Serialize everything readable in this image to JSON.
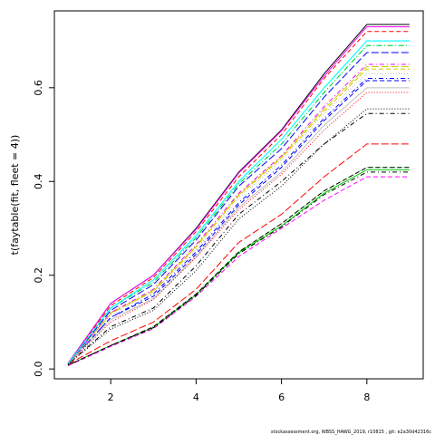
{
  "chart_data": {
    "type": "line",
    "ylabel": "t(faytable(fit, fleet = 4))",
    "footer": "stockassessment.org, WBSS_HAWG_2019, r10815 , git: e2a30d42316c",
    "x": [
      1,
      2,
      3,
      4,
      5,
      6,
      7,
      8,
      9
    ],
    "xlim": [
      0.68,
      9.32
    ],
    "ylim": [
      -0.021,
      0.764
    ],
    "xticks": [
      2,
      4,
      6,
      8
    ],
    "yticks": [
      {
        "value": 0,
        "label": "0.0"
      },
      {
        "value": 0.2,
        "label": "0.2"
      },
      {
        "value": 0.4,
        "label": "0.4"
      },
      {
        "value": 0.6,
        "label": "0.6"
      }
    ],
    "series": [
      {
        "color": "#000000",
        "values": [
          0.012,
          0.14,
          0.2,
          0.3,
          0.42,
          0.51,
          0.63,
          0.735,
          0.735
        ]
      },
      {
        "color": "#ff0000",
        "values": [
          0.012,
          0.135,
          0.195,
          0.293,
          0.41,
          0.5,
          0.62,
          0.72,
          0.72
        ]
      },
      {
        "color": "#00cd00",
        "values": [
          0.008,
          0.05,
          0.09,
          0.16,
          0.25,
          0.31,
          0.38,
          0.43,
          0.43
        ]
      },
      {
        "color": "#0000ff",
        "values": [
          0.01,
          0.11,
          0.16,
          0.25,
          0.355,
          0.435,
          0.535,
          0.62,
          0.62
        ]
      },
      {
        "color": "#00ffff",
        "values": [
          0.011,
          0.13,
          0.19,
          0.285,
          0.4,
          0.49,
          0.6,
          0.7,
          0.7
        ]
      },
      {
        "color": "#ff00ff",
        "values": [
          0.012,
          0.14,
          0.2,
          0.298,
          0.418,
          0.508,
          0.625,
          0.73,
          0.73
        ]
      },
      {
        "color": "#cccc00",
        "values": [
          0.011,
          0.12,
          0.165,
          0.26,
          0.37,
          0.45,
          0.55,
          0.64,
          0.64
        ]
      },
      {
        "color": "#bebebe",
        "values": [
          0.01,
          0.115,
          0.165,
          0.255,
          0.365,
          0.445,
          0.545,
          0.63,
          0.63
        ]
      },
      {
        "color": "#000000",
        "values": [
          0.01,
          0.09,
          0.13,
          0.22,
          0.33,
          0.4,
          0.48,
          0.545,
          0.545
        ]
      },
      {
        "color": "#ff0000",
        "values": [
          0.01,
          0.06,
          0.1,
          0.17,
          0.27,
          0.33,
          0.41,
          0.48,
          0.48
        ]
      },
      {
        "color": "#00cd00",
        "values": [
          0.008,
          0.05,
          0.088,
          0.158,
          0.248,
          0.305,
          0.375,
          0.425,
          0.425
        ]
      },
      {
        "color": "#0000ff",
        "values": [
          0.01,
          0.11,
          0.155,
          0.245,
          0.35,
          0.43,
          0.53,
          0.615,
          0.615
        ]
      },
      {
        "color": "#00ffff",
        "values": [
          0.011,
          0.13,
          0.185,
          0.28,
          0.395,
          0.48,
          0.59,
          0.69,
          0.69
        ]
      },
      {
        "color": "#ff00ff",
        "values": [
          0.011,
          0.12,
          0.17,
          0.265,
          0.375,
          0.455,
          0.56,
          0.65,
          0.65
        ]
      },
      {
        "color": "#cccc00",
        "values": [
          0.011,
          0.118,
          0.168,
          0.262,
          0.372,
          0.452,
          0.555,
          0.645,
          0.645
        ]
      },
      {
        "color": "#bebebe",
        "values": [
          0.01,
          0.105,
          0.15,
          0.24,
          0.345,
          0.42,
          0.52,
          0.6,
          0.6
        ]
      },
      {
        "color": "#000000",
        "values": [
          0.008,
          0.05,
          0.09,
          0.16,
          0.25,
          0.31,
          0.38,
          0.43,
          0.43
        ]
      },
      {
        "color": "#ff0000",
        "values": [
          0.01,
          0.1,
          0.148,
          0.238,
          0.34,
          0.415,
          0.51,
          0.59,
          0.59
        ]
      },
      {
        "color": "#00cd00",
        "values": [
          0.011,
          0.13,
          0.185,
          0.28,
          0.395,
          0.48,
          0.59,
          0.69,
          0.69
        ]
      },
      {
        "color": "#0000ff",
        "values": [
          0.011,
          0.125,
          0.18,
          0.275,
          0.39,
          0.47,
          0.58,
          0.675,
          0.675
        ]
      },
      {
        "color": "#00ffff",
        "values": [
          0.011,
          0.13,
          0.19,
          0.285,
          0.4,
          0.49,
          0.6,
          0.7,
          0.7
        ]
      },
      {
        "color": "#ff00ff",
        "values": [
          0.007,
          0.048,
          0.086,
          0.155,
          0.24,
          0.3,
          0.36,
          0.41,
          0.41
        ]
      },
      {
        "color": "#000000",
        "values": [
          0.01,
          0.085,
          0.125,
          0.21,
          0.32,
          0.39,
          0.48,
          0.555,
          0.555
        ]
      },
      {
        "color": "#000000",
        "values": [
          0.008,
          0.05,
          0.088,
          0.157,
          0.246,
          0.303,
          0.372,
          0.42,
          0.42
        ]
      }
    ]
  }
}
